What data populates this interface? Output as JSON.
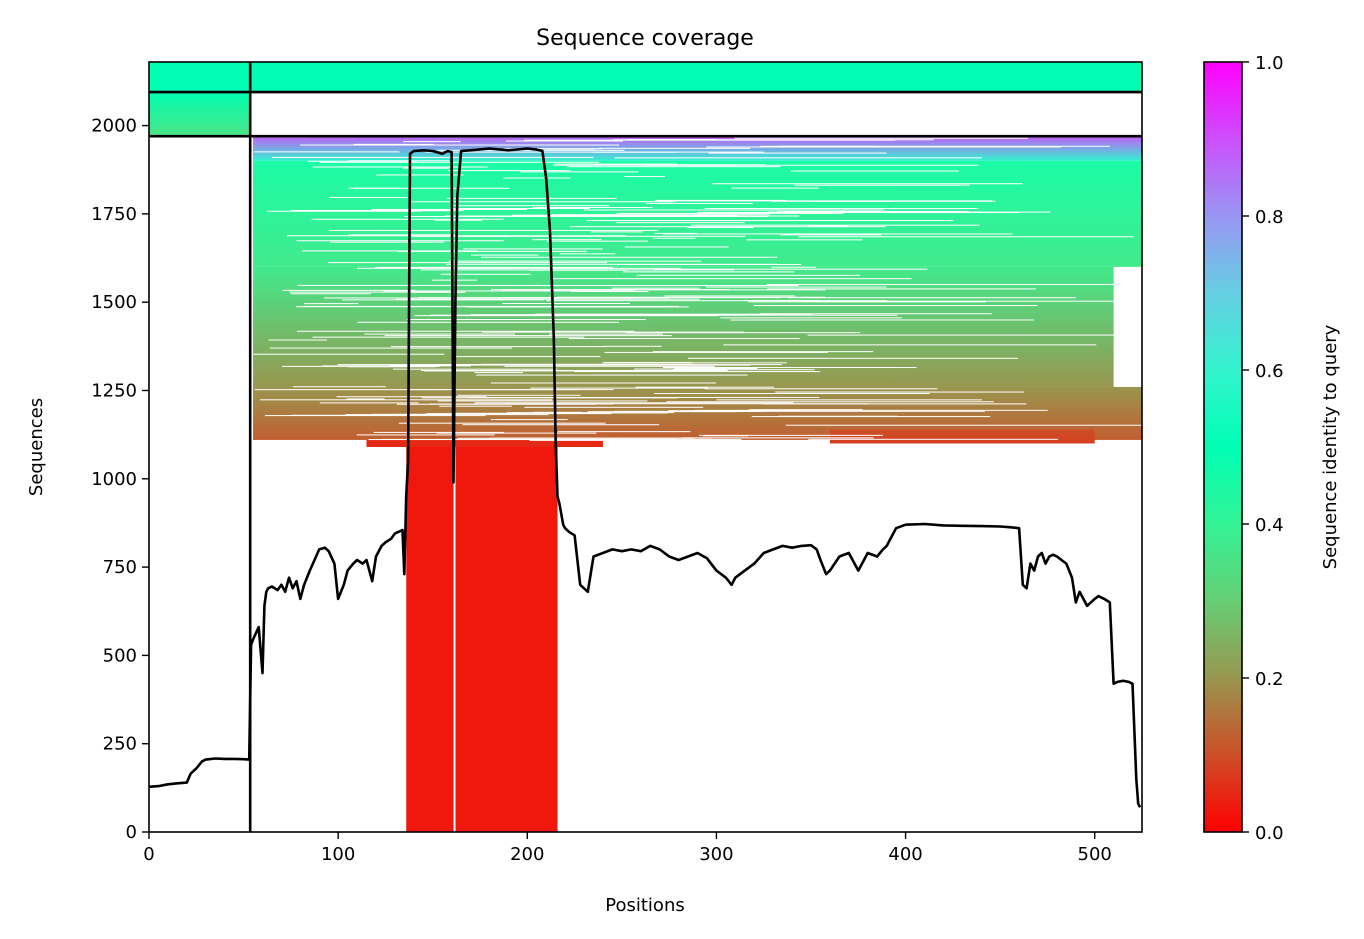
{
  "chart_data": {
    "type": "heatmap",
    "title": "Sequence coverage",
    "xlabel": "Positions",
    "ylabel": "Sequences",
    "xlim": [
      0,
      525
    ],
    "ylim": [
      0,
      2180
    ],
    "xticks": [
      0,
      100,
      200,
      300,
      400,
      500
    ],
    "yticks": [
      0,
      250,
      500,
      750,
      1000,
      1250,
      1500,
      1750,
      2000
    ],
    "colorbar": {
      "label": "Sequence identity to query",
      "range": [
        0,
        1
      ],
      "ticks": [
        "0.0",
        "0.2",
        "0.4",
        "0.6",
        "0.8",
        "1.0"
      ],
      "colormap": "rainbow_r"
    },
    "segment_boundaries": {
      "x": [
        53.5
      ],
      "y": [
        1970,
        2095
      ]
    },
    "coverage_blocks": [
      {
        "x0": 0,
        "x1": 53,
        "y0": 1970,
        "y1": 2095,
        "identity_bottom": 0.35,
        "identity_top": 0.5
      },
      {
        "x0": 54,
        "x1": 525,
        "y0": 2095,
        "y1": 2180,
        "identity_bottom": 0.5,
        "identity_top": 0.5
      },
      {
        "x0": 0,
        "x1": 53,
        "y0": 2095,
        "y1": 2180,
        "identity_bottom": 0.5,
        "identity_top": 0.5
      },
      {
        "x0": 55,
        "x1": 525,
        "y0": 1900,
        "y1": 1970,
        "identity_bottom": 0.6,
        "identity_top": 0.88
      },
      {
        "x0": 55,
        "x1": 525,
        "y0": 1600,
        "y1": 1900,
        "identity_bottom": 0.37,
        "identity_top": 0.45
      },
      {
        "x0": 55,
        "x1": 510,
        "y0": 1260,
        "y1": 1600,
        "identity_bottom": 0.2,
        "identity_top": 0.37
      },
      {
        "x0": 55,
        "x1": 525,
        "y0": 1110,
        "y1": 1260,
        "identity_bottom": 0.12,
        "identity_top": 0.2
      },
      {
        "x0": 360,
        "x1": 500,
        "y0": 1100,
        "y1": 1140,
        "identity_bottom": 0.08,
        "identity_top": 0.1
      },
      {
        "x0": 115,
        "x1": 240,
        "y0": 1090,
        "y1": 1110,
        "identity_bottom": 0.05,
        "identity_top": 0.05
      },
      {
        "x0": 136,
        "x1": 216,
        "y0": 0,
        "y1": 1090,
        "identity_bottom": 0.03,
        "identity_top": 0.03
      }
    ],
    "coverage_line": {
      "x": [
        0,
        5,
        10,
        15,
        20,
        22,
        25,
        28,
        30,
        35,
        40,
        45,
        50,
        53,
        54,
        55,
        58,
        60,
        61,
        62,
        63,
        65,
        68,
        70,
        72,
        74,
        76,
        78,
        80,
        82,
        85,
        90,
        93,
        95,
        98,
        100,
        103,
        105,
        108,
        110,
        113,
        115,
        118,
        120,
        123,
        125,
        128,
        130,
        132,
        134,
        135,
        136,
        137,
        138,
        140,
        145,
        150,
        155,
        158,
        160,
        161,
        162,
        163,
        165,
        170,
        180,
        190,
        200,
        205,
        208,
        210,
        212,
        214,
        215,
        216,
        217,
        218,
        219,
        220,
        222,
        225,
        228,
        230,
        232,
        235,
        240,
        245,
        250,
        255,
        260,
        265,
        270,
        275,
        280,
        285,
        290,
        295,
        300,
        305,
        308,
        310,
        315,
        320,
        325,
        330,
        335,
        340,
        345,
        350,
        353,
        355,
        358,
        360,
        365,
        370,
        372,
        375,
        380,
        385,
        388,
        390,
        395,
        400,
        410,
        420,
        430,
        440,
        450,
        455,
        460,
        462,
        464,
        466,
        468,
        470,
        472,
        474,
        476,
        478,
        480,
        485,
        488,
        490,
        492,
        494,
        496,
        498,
        500,
        502,
        505,
        508,
        510,
        512,
        515,
        518,
        520,
        522,
        523,
        524,
        525
      ],
      "y": [
        128,
        130,
        135,
        138,
        140,
        165,
        180,
        200,
        205,
        208,
        207,
        207,
        206,
        205,
        530,
        545,
        580,
        450,
        640,
        680,
        690,
        695,
        685,
        700,
        680,
        720,
        690,
        710,
        660,
        700,
        740,
        800,
        805,
        795,
        760,
        660,
        700,
        740,
        760,
        770,
        760,
        770,
        710,
        780,
        810,
        820,
        830,
        845,
        850,
        855,
        730,
        950,
        1050,
        1920,
        1928,
        1930,
        1928,
        1920,
        1928,
        1925,
        990,
        1500,
        1800,
        1928,
        1930,
        1935,
        1930,
        1935,
        1932,
        1928,
        1850,
        1700,
        1400,
        1100,
        950,
        930,
        900,
        870,
        860,
        850,
        840,
        700,
        690,
        680,
        780,
        790,
        800,
        795,
        800,
        795,
        810,
        800,
        780,
        770,
        780,
        790,
        775,
        740,
        720,
        700,
        720,
        740,
        760,
        790,
        800,
        810,
        805,
        810,
        812,
        800,
        770,
        730,
        740,
        780,
        790,
        770,
        740,
        790,
        780,
        800,
        810,
        860,
        870,
        872,
        868,
        867,
        866,
        865,
        863,
        860,
        700,
        690,
        760,
        740,
        780,
        790,
        760,
        780,
        785,
        780,
        760,
        720,
        650,
        680,
        660,
        640,
        650,
        660,
        668,
        660,
        650,
        420,
        425,
        428,
        425,
        420,
        150,
        80,
        70
      ]
    }
  }
}
